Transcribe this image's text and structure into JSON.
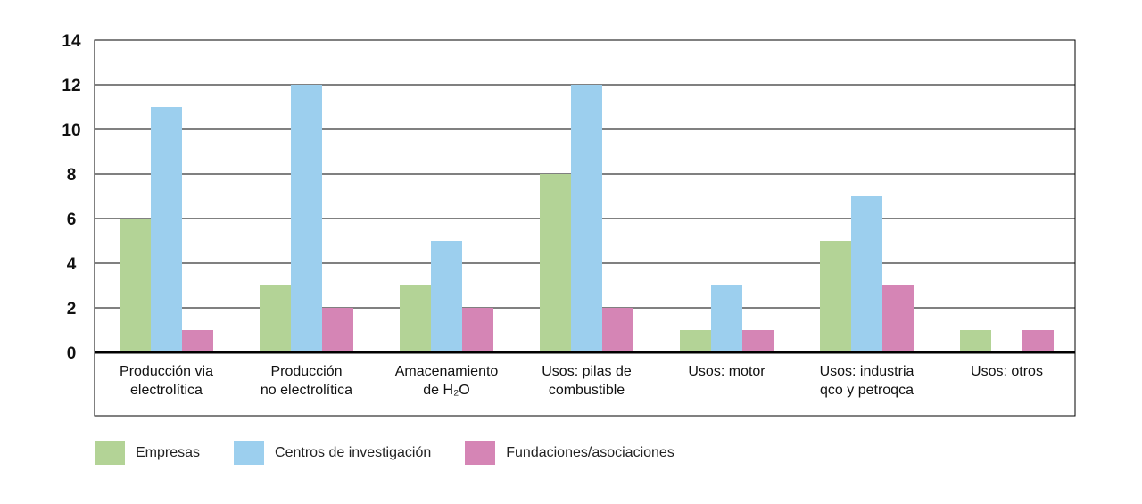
{
  "chart_data": {
    "type": "bar",
    "categories": [
      [
        "Producción via",
        "electrolítica"
      ],
      [
        "Producción",
        "no electrolítica"
      ],
      [
        "Amacenamiento",
        "de H₂O"
      ],
      [
        "Usos: pilas de",
        "combustible"
      ],
      [
        "Usos: motor"
      ],
      [
        "Usos: industria",
        "qco y petroqca"
      ],
      [
        "Usos: otros"
      ]
    ],
    "series": [
      {
        "name": "Empresas",
        "color": "#b3d396",
        "values": [
          6,
          3,
          3,
          8,
          1,
          5,
          1
        ]
      },
      {
        "name": "Centros de investigación",
        "color": "#9ccfee",
        "values": [
          11,
          12,
          5,
          12,
          3,
          7,
          0
        ]
      },
      {
        "name": "Fundaciones/asociaciones",
        "color": "#d585b5",
        "values": [
          1,
          2,
          2,
          2,
          1,
          3,
          1
        ]
      }
    ],
    "yticks": [
      "0",
      "2",
      "4",
      "6",
      "8",
      "10",
      "12",
      "14"
    ],
    "ylim": [
      0,
      14
    ],
    "grid": true,
    "legend_position": "bottom-left"
  }
}
